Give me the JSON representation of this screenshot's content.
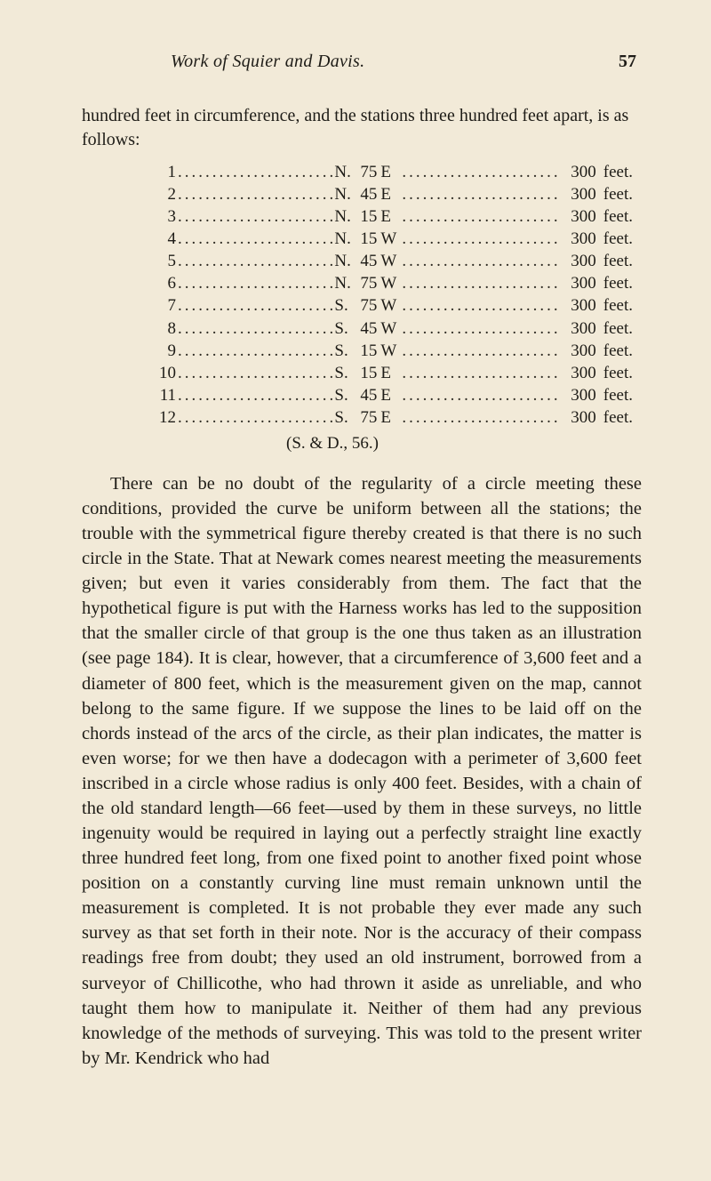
{
  "header": {
    "running_title": "Work of Squier and Davis.",
    "page_number": "57"
  },
  "intro": "hundred feet in circumference, and the stations three hundred feet apart, is as follows:",
  "table": {
    "rows": [
      {
        "idx": "1",
        "dir": "N.",
        "deg": "75",
        "card": "E",
        "dist": "300",
        "unit": "feet."
      },
      {
        "idx": "2",
        "dir": "N.",
        "deg": "45",
        "card": "E",
        "dist": "300",
        "unit": "feet."
      },
      {
        "idx": "3",
        "dir": "N.",
        "deg": "15",
        "card": "E",
        "dist": "300",
        "unit": "feet."
      },
      {
        "idx": "4",
        "dir": "N.",
        "deg": "15",
        "card": "W",
        "dist": "300",
        "unit": "feet."
      },
      {
        "idx": "5",
        "dir": "N.",
        "deg": "45",
        "card": "W",
        "dist": "300",
        "unit": "feet."
      },
      {
        "idx": "6",
        "dir": "N.",
        "deg": "75",
        "card": "W",
        "dist": "300",
        "unit": "feet."
      },
      {
        "idx": "7",
        "dir": "S.",
        "deg": "75",
        "card": "W",
        "dist": "300",
        "unit": "feet."
      },
      {
        "idx": "8",
        "dir": "S.",
        "deg": "45",
        "card": "W",
        "dist": "300",
        "unit": "feet."
      },
      {
        "idx": "9",
        "dir": "S.",
        "deg": "15",
        "card": "W",
        "dist": "300",
        "unit": "feet."
      },
      {
        "idx": "10",
        "dir": "S.",
        "deg": "15",
        "card": "E",
        "dist": "300",
        "unit": "feet."
      },
      {
        "idx": "11",
        "dir": "S.",
        "deg": "45",
        "card": "E",
        "dist": "300",
        "unit": "feet."
      },
      {
        "idx": "12",
        "dir": "S.",
        "deg": "75",
        "card": "E",
        "dist": "300",
        "unit": "feet."
      }
    ],
    "footer": "(S. & D., 56.)"
  },
  "body": "There can be no doubt of the regularity of a circle meeting these conditions, provided the curve be uniform between all the stations; the trouble with the symmetrical figure thereby created is that there is no such circle in the State. That at Newark comes nearest meeting the measurements given; but even it varies con­siderably from them. The fact that the hypothetical figure is put with the Harness works has led to the supposition that the smaller circle of that group is the one thus taken as an illustra­tion (see page 184). It is clear, however, that a circumference of 3,600 feet and a diameter of 800 feet, which is the measurement given on the map, cannot belong to the same figure. If we sup­pose the lines to be laid off on the chords instead of the arcs of the circle, as their plan indicates, the matter is even worse; for we then have a dodecagon with a perimeter of 3,600 feet inscribed in a circle whose radius is only 400 feet. Besides, with a chain of the old standard length—66 feet—used by them in these surveys, no little ingenuity would be required in laying out a per­fectly straight line exactly three hundred feet long, from one fixed point to another fixed point whose position on a constantly curv­ing line must remain unknown until the measurement is completed. It is not probable they ever made any such survey as that set forth in their note. Nor is the accuracy of their compass read­ings free from doubt; they used an old instrument, borrowed from a surveyor of Chillicothe, who had thrown it aside as unre­liable, and who taught them how to manipulate it. Neither of them had any previous knowledge of the methods of surveying. This was told to the present writer by Mr. Kendrick who had"
}
